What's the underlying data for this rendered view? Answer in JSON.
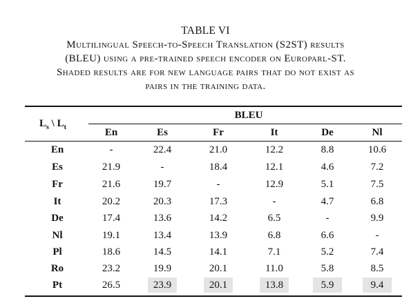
{
  "caption": {
    "table_label": "TABLE VI",
    "lines": [
      "Multilingual Speech-to-Speech Translation (S2ST) results",
      "(BLEU) using a pre-trained speech encoder on Europarl-ST.",
      "Shaded results are for new language pairs that do not exist as",
      "pairs in the training data."
    ]
  },
  "table": {
    "corner": {
      "left": "L",
      "sub1": "s",
      "sep": " \\ L",
      "sub2": "t"
    },
    "group_header": "BLEU",
    "columns": [
      "En",
      "Es",
      "Fr",
      "It",
      "De",
      "Nl"
    ],
    "rows": [
      {
        "label": "En",
        "values": [
          "-",
          "22.4",
          "21.0",
          "12.2",
          "8.8",
          "10.6"
        ],
        "shaded": [
          false,
          false,
          false,
          false,
          false,
          false
        ]
      },
      {
        "label": "Es",
        "values": [
          "21.9",
          "-",
          "18.4",
          "12.1",
          "4.6",
          "7.2"
        ],
        "shaded": [
          false,
          false,
          false,
          false,
          false,
          false
        ]
      },
      {
        "label": "Fr",
        "values": [
          "21.6",
          "19.7",
          "-",
          "12.9",
          "5.1",
          "7.5"
        ],
        "shaded": [
          false,
          false,
          false,
          false,
          false,
          false
        ]
      },
      {
        "label": "It",
        "values": [
          "20.2",
          "20.3",
          "17.3",
          "-",
          "4.7",
          "6.8"
        ],
        "shaded": [
          false,
          false,
          false,
          false,
          false,
          false
        ]
      },
      {
        "label": "De",
        "values": [
          "17.4",
          "13.6",
          "14.2",
          "6.5",
          "-",
          "9.9"
        ],
        "shaded": [
          false,
          false,
          false,
          false,
          false,
          false
        ]
      },
      {
        "label": "Nl",
        "values": [
          "19.1",
          "13.4",
          "13.9",
          "6.8",
          "6.6",
          "-"
        ],
        "shaded": [
          false,
          false,
          false,
          false,
          false,
          false
        ]
      },
      {
        "label": "Pl",
        "values": [
          "18.6",
          "14.5",
          "14.1",
          "7.1",
          "5.2",
          "7.4"
        ],
        "shaded": [
          false,
          false,
          false,
          false,
          false,
          false
        ]
      },
      {
        "label": "Ro",
        "values": [
          "23.2",
          "19.9",
          "20.1",
          "11.0",
          "5.8",
          "8.5"
        ],
        "shaded": [
          false,
          false,
          false,
          false,
          false,
          false
        ]
      },
      {
        "label": "Pt",
        "values": [
          "26.5",
          "23.9",
          "20.1",
          "13.8",
          "5.9",
          "9.4"
        ],
        "shaded": [
          false,
          true,
          true,
          true,
          true,
          true
        ]
      }
    ],
    "shade_color": "#e4e4e4"
  }
}
